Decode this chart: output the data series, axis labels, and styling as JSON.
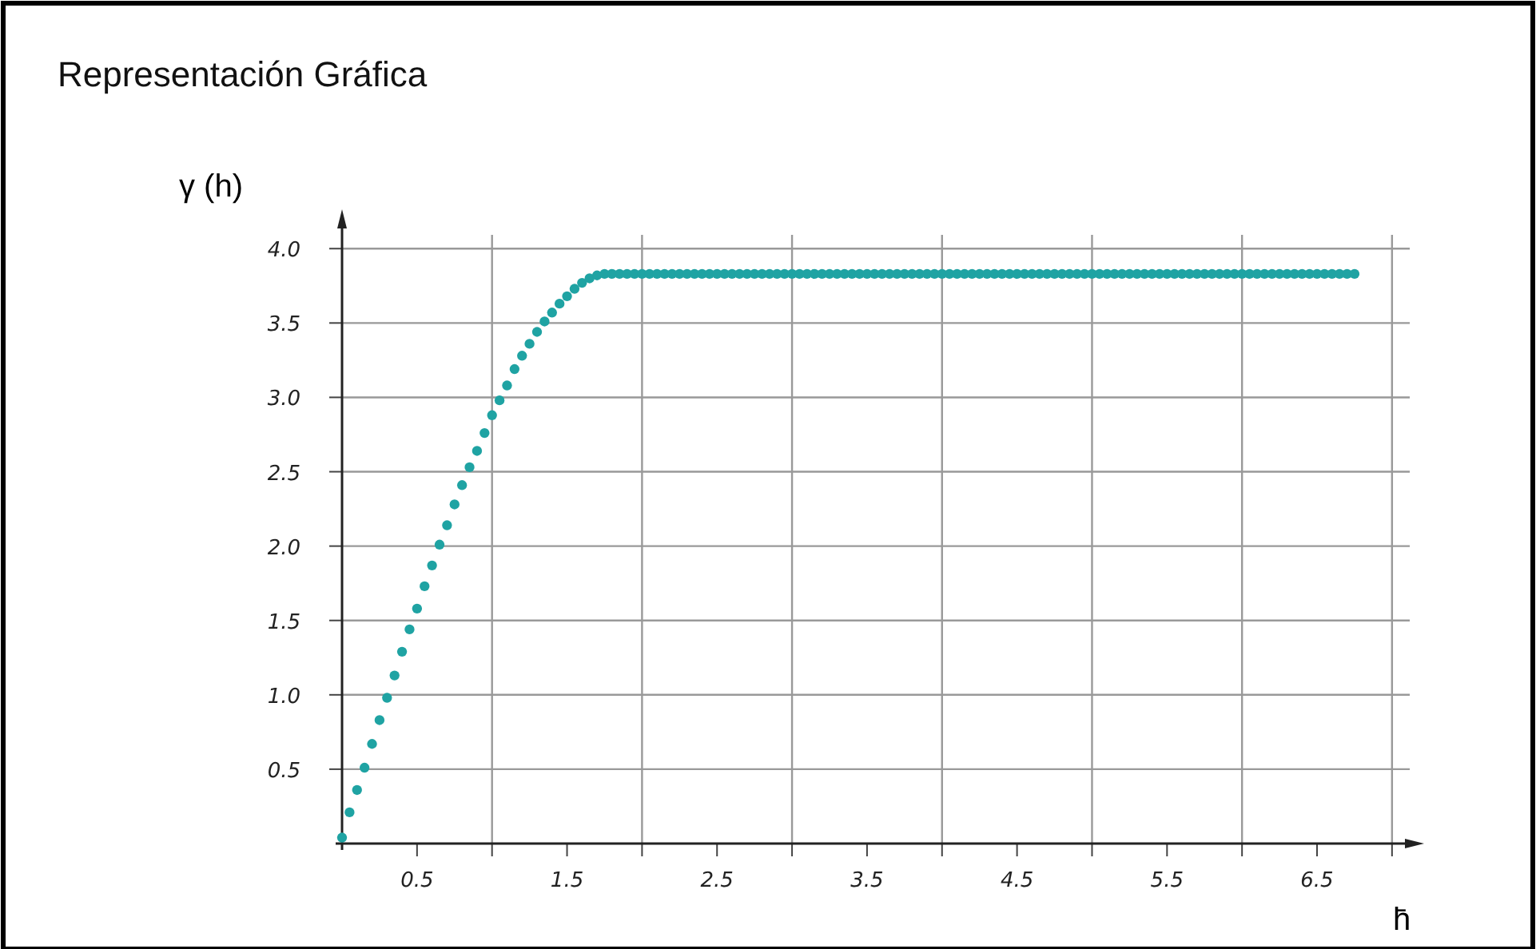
{
  "chart_data": {
    "type": "scatter",
    "title": "Representación Gráfica",
    "xlabel": "h̄",
    "ylabel": "γ (h)",
    "x": [
      0,
      0.05,
      0.1,
      0.15,
      0.2,
      0.25,
      0.3,
      0.35,
      0.4,
      0.45,
      0.5,
      0.55,
      0.6,
      0.65,
      0.7,
      0.75,
      0.8,
      0.85,
      0.9,
      0.95,
      1,
      1.05,
      1.1,
      1.15,
      1.2,
      1.25,
      1.3,
      1.35,
      1.4,
      1.45,
      1.5,
      1.55,
      1.6,
      1.65,
      1.7,
      1.75,
      1.8,
      1.85,
      1.9,
      1.95,
      2,
      2.05,
      2.1,
      2.15,
      2.2,
      2.25,
      2.3,
      2.35,
      2.4,
      2.45,
      2.5,
      2.55,
      2.6,
      2.65,
      2.7,
      2.75,
      2.8,
      2.85,
      2.9,
      2.95,
      3,
      3.05,
      3.1,
      3.15,
      3.2,
      3.25,
      3.3,
      3.35,
      3.4,
      3.45,
      3.5,
      3.55,
      3.6,
      3.65,
      3.7,
      3.75,
      3.8,
      3.85,
      3.9,
      3.95,
      4,
      4.05,
      4.1,
      4.15,
      4.2,
      4.25,
      4.3,
      4.35,
      4.4,
      4.45,
      4.5,
      4.55,
      4.6,
      4.65,
      4.7,
      4.75,
      4.8,
      4.85,
      4.9,
      4.95,
      5,
      5.05,
      5.1,
      5.15,
      5.2,
      5.25,
      5.3,
      5.35,
      5.4,
      5.45,
      5.5,
      5.55,
      5.6,
      5.65,
      5.7,
      5.75,
      5.8,
      5.85,
      5.9,
      5.95,
      6,
      6.05,
      6.1,
      6.15,
      6.2,
      6.25,
      6.3,
      6.35,
      6.4,
      6.45,
      6.5,
      6.55,
      6.6,
      6.65,
      6.7,
      6.75
    ],
    "series": [
      {
        "color": "#1fa3a3",
        "values": [
          0.04,
          0.21,
          0.36,
          0.51,
          0.67,
          0.83,
          0.98,
          1.13,
          1.29,
          1.44,
          1.58,
          1.73,
          1.87,
          2.01,
          2.14,
          2.28,
          2.41,
          2.53,
          2.64,
          2.76,
          2.88,
          2.98,
          3.08,
          3.19,
          3.28,
          3.36,
          3.44,
          3.51,
          3.57,
          3.63,
          3.68,
          3.73,
          3.77,
          3.8,
          3.82,
          3.83,
          3.83,
          3.83,
          3.83,
          3.83,
          3.83,
          3.83,
          3.83,
          3.83,
          3.83,
          3.83,
          3.83,
          3.83,
          3.83,
          3.83,
          3.83,
          3.83,
          3.83,
          3.83,
          3.83,
          3.83,
          3.83,
          3.83,
          3.83,
          3.83,
          3.83,
          3.83,
          3.83,
          3.83,
          3.83,
          3.83,
          3.83,
          3.83,
          3.83,
          3.83,
          3.83,
          3.83,
          3.83,
          3.83,
          3.83,
          3.83,
          3.83,
          3.83,
          3.83,
          3.83,
          3.83,
          3.83,
          3.83,
          3.83,
          3.83,
          3.83,
          3.83,
          3.83,
          3.83,
          3.83,
          3.83,
          3.83,
          3.83,
          3.83,
          3.83,
          3.83,
          3.83,
          3.83,
          3.83,
          3.83,
          3.83,
          3.83,
          3.83,
          3.83,
          3.83,
          3.83,
          3.83,
          3.83,
          3.83,
          3.83,
          3.83,
          3.83,
          3.83,
          3.83,
          3.83,
          3.83,
          3.83,
          3.83,
          3.83,
          3.83,
          3.83,
          3.83,
          3.83,
          3.83,
          3.83,
          3.83,
          3.83,
          3.83,
          3.83,
          3.83,
          3.83,
          3.83,
          3.83,
          3.83,
          3.83,
          3.83
        ]
      }
    ],
    "xlim": [
      0,
      7.15
    ],
    "ylim": [
      0,
      4.2
    ],
    "xticks": [
      0.5,
      {
        "value": 1,
        "label": null
      },
      1.5,
      {
        "value": 2,
        "label": null
      },
      2.5,
      {
        "value": 3,
        "label": null
      },
      3.5,
      {
        "value": 4,
        "label": null
      },
      4.5,
      {
        "value": 5,
        "label": null
      },
      5.5,
      {
        "value": 6,
        "label": null
      },
      6.5,
      {
        "value": 7,
        "label": null
      }
    ],
    "yticks": [
      {
        "value": 0.5,
        "label": "0.5"
      },
      {
        "value": 1,
        "label": "1.0"
      },
      {
        "value": 1.5,
        "label": "1.5"
      },
      {
        "value": 2,
        "label": "2.0"
      },
      {
        "value": 2.5,
        "label": "2.5"
      },
      {
        "value": 3,
        "label": "3.0"
      },
      {
        "value": 3.5,
        "label": "3.5"
      },
      {
        "value": 4,
        "label": "4.0"
      }
    ],
    "grid": true,
    "marker": "circle"
  }
}
